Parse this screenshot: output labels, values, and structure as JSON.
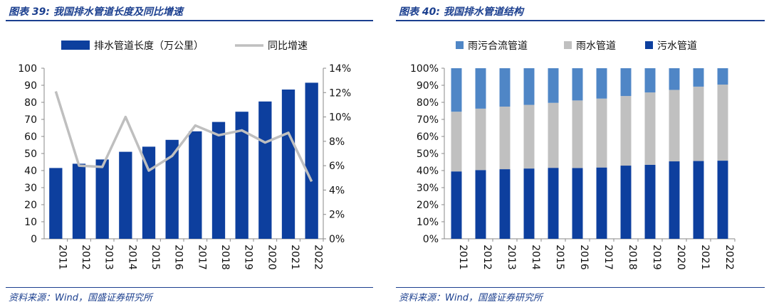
{
  "left_panel": {
    "title": "图表 39:  我国排水管道长度及同比增速",
    "source": "资料来源：Wind，国盛证券研究所"
  },
  "right_panel": {
    "title": "图表 40:  我国排水管道结构",
    "source": "资料来源：Wind，国盛证券研究所"
  },
  "colors": {
    "dark_blue": "#0d3f9e",
    "mid_blue": "#4f86c6",
    "gray": "#c0c0c0",
    "line_gray": "#bfbfbf",
    "header": "#1b3f8f"
  },
  "chart_data": [
    {
      "type": "bar",
      "title": "",
      "categories": [
        "2011",
        "2012",
        "2013",
        "2014",
        "2015",
        "2016",
        "2017",
        "2018",
        "2019",
        "2020",
        "2021",
        "2022"
      ],
      "series": [
        {
          "name": "排水管道长度（万公里）",
          "axis": "left",
          "type": "bar",
          "values": [
            41.5,
            44,
            46.5,
            51,
            54,
            58,
            63,
            68.5,
            74.5,
            80.5,
            87.5,
            91.5
          ]
        },
        {
          "name": "同比增速",
          "axis": "right",
          "type": "line",
          "unit": "%",
          "values": [
            12.1,
            6.0,
            5.9,
            10.0,
            5.6,
            6.8,
            9.3,
            8.5,
            8.9,
            7.9,
            8.7,
            4.7
          ]
        }
      ],
      "ylim_left": [
        0,
        100
      ],
      "yticks_left": [
        "0",
        "10",
        "20",
        "30",
        "40",
        "50",
        "60",
        "70",
        "80",
        "90",
        "100"
      ],
      "ylim_right": [
        0,
        14
      ],
      "yticks_right": [
        "0%",
        "2%",
        "4%",
        "6%",
        "8%",
        "10%",
        "12%",
        "14%"
      ],
      "legend": "top",
      "grid": false
    },
    {
      "type": "bar",
      "stacked": true,
      "percent": true,
      "title": "",
      "categories": [
        "2011",
        "2012",
        "2013",
        "2014",
        "2015",
        "2016",
        "2017",
        "2018",
        "2019",
        "2020",
        "2021",
        "2022"
      ],
      "series": [
        {
          "name": "污水管道",
          "values": [
            39.5,
            40.3,
            40.8,
            41.2,
            41.6,
            41.5,
            41.8,
            42.9,
            43.4,
            45.4,
            45.6,
            45.8
          ]
        },
        {
          "name": "雨水管道",
          "values": [
            35,
            36,
            36.7,
            37.3,
            38.1,
            39.6,
            40.4,
            40.8,
            42.4,
            41.9,
            43.6,
            44.6
          ]
        },
        {
          "name": "雨污合流管道",
          "values": [
            25.5,
            23.7,
            22.5,
            21.5,
            20.3,
            18.9,
            17.8,
            16.3,
            14.2,
            12.7,
            10.8,
            9.6
          ]
        }
      ],
      "ylim": [
        0,
        100
      ],
      "yticks": [
        "0%",
        "10%",
        "20%",
        "30%",
        "40%",
        "50%",
        "60%",
        "70%",
        "80%",
        "90%",
        "100%"
      ],
      "legend_order": [
        "雨污合流管道",
        "雨水管道",
        "污水管道"
      ],
      "legend": "top",
      "grid": false
    }
  ]
}
